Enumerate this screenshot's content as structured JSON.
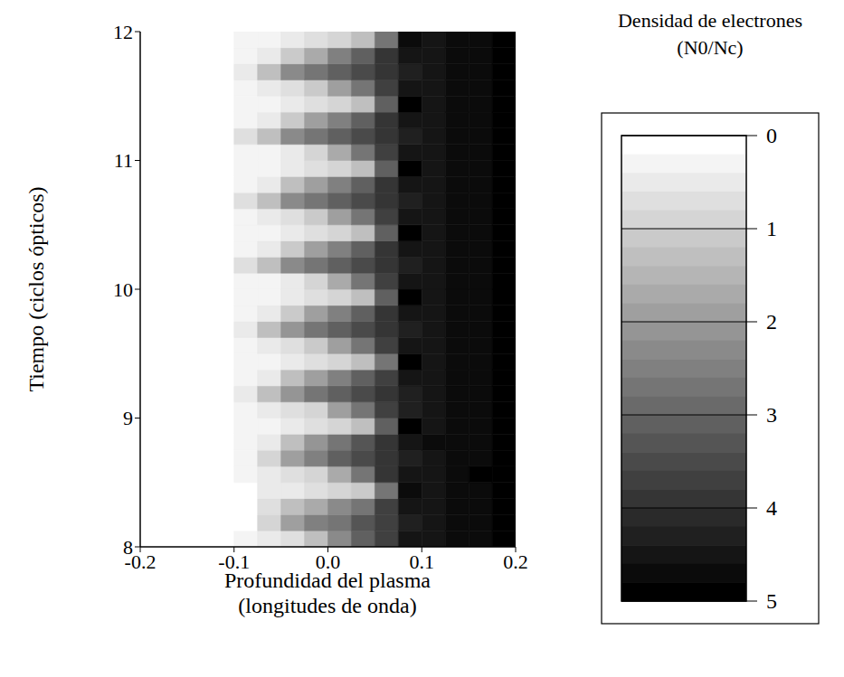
{
  "chart_data": {
    "type": "heatmap",
    "xlabel": "Profundidad del plasma (longitudes de onda)",
    "ylabel": "Tiempo (ciclos ópticos)",
    "xlim": [
      -0.2,
      0.2
    ],
    "xticks": [
      -0.2,
      -0.1,
      {
        "value": 0,
        "label": "0.0"
      },
      0.1,
      0.2
    ],
    "ylim": [
      8,
      12
    ],
    "yticks": [
      8,
      9,
      10,
      11,
      12
    ],
    "x_edges": [
      -0.2,
      -0.175,
      -0.15,
      -0.125,
      -0.1,
      -0.075,
      -0.05,
      -0.025,
      0,
      0.025,
      0.05,
      0.075,
      0.1,
      0.125,
      0.15,
      0.175,
      0.2
    ],
    "y_edges": [
      8,
      8.125,
      8.25,
      8.375,
      8.5,
      8.625,
      8.75,
      8.875,
      9,
      9.125,
      9.25,
      9.375,
      9.5,
      9.625,
      9.75,
      9.875,
      10,
      10.125,
      10.25,
      10.375,
      10.5,
      10.625,
      10.75,
      10.875,
      11,
      11.125,
      11.25,
      11.375,
      11.5,
      11.625,
      11.75,
      11.875,
      12
    ],
    "cells": [
      [
        0,
        0,
        0,
        0,
        0.2,
        0.4,
        0.6,
        1.2,
        2.2,
        3.0,
        3.6,
        4.4,
        4.4,
        4.6,
        4.7,
        4.8
      ],
      [
        0,
        0,
        0,
        0,
        0,
        0.8,
        1.8,
        2.4,
        2.8,
        3.2,
        3.6,
        4.2,
        4.4,
        4.6,
        4.6,
        4.8
      ],
      [
        0,
        0,
        0,
        0,
        0,
        0.6,
        1.2,
        1.6,
        2.2,
        2.8,
        3.6,
        4.4,
        4.4,
        4.6,
        4.7,
        4.8
      ],
      [
        0,
        0,
        0,
        0,
        0,
        0.4,
        0.5,
        0.6,
        0.8,
        1.0,
        2.6,
        4.6,
        4.4,
        4.6,
        4.7,
        4.9
      ],
      [
        0,
        0,
        0,
        0,
        0.2,
        0.4,
        0.6,
        0.8,
        1.6,
        2.8,
        3.8,
        4.4,
        4.5,
        4.6,
        4.8,
        4.8
      ],
      [
        0,
        0,
        0,
        0,
        0.3,
        0.9,
        1.8,
        2.4,
        3.0,
        3.4,
        3.8,
        4.2,
        4.5,
        4.6,
        4.7,
        4.8
      ],
      [
        0,
        0,
        0,
        0,
        0.2,
        0.4,
        1.4,
        2.0,
        2.6,
        3.2,
        3.8,
        4.4,
        4.6,
        4.6,
        4.7,
        4.8
      ],
      [
        0,
        0,
        0,
        0,
        0.2,
        0.3,
        0.5,
        0.6,
        0.8,
        1.2,
        3.0,
        4.8,
        4.5,
        4.6,
        4.7,
        4.8
      ],
      [
        0,
        0,
        0,
        0,
        0.3,
        0.4,
        0.6,
        0.9,
        1.8,
        2.8,
        3.6,
        4.3,
        4.5,
        4.6,
        4.7,
        4.8
      ],
      [
        0,
        0,
        0,
        0,
        0.5,
        1.4,
        2.0,
        2.6,
        3.0,
        3.4,
        3.8,
        4.2,
        4.4,
        4.6,
        4.7,
        4.8
      ],
      [
        0,
        0,
        0,
        0,
        0.2,
        0.5,
        1.2,
        1.8,
        2.4,
        3.0,
        3.6,
        4.4,
        4.5,
        4.6,
        4.7,
        4.8
      ],
      [
        0,
        0,
        0,
        0,
        0.2,
        0.3,
        0.5,
        0.6,
        0.8,
        1.2,
        2.8,
        4.8,
        4.4,
        4.6,
        4.7,
        4.8
      ],
      [
        0,
        0,
        0,
        0,
        0.2,
        0.4,
        0.6,
        1.0,
        1.8,
        2.8,
        3.6,
        4.4,
        4.5,
        4.6,
        4.7,
        4.8
      ],
      [
        0,
        0,
        0,
        0,
        0.4,
        1.2,
        2.0,
        2.6,
        3.0,
        3.4,
        3.8,
        4.2,
        4.4,
        4.6,
        4.7,
        4.8
      ],
      [
        0,
        0,
        0,
        0,
        0.2,
        0.4,
        1.0,
        1.8,
        2.4,
        3.0,
        3.8,
        4.4,
        4.5,
        4.6,
        4.7,
        4.8
      ],
      [
        0,
        0,
        0,
        0,
        0.2,
        0.3,
        0.4,
        0.6,
        0.8,
        1.2,
        3.0,
        4.8,
        4.5,
        4.6,
        4.7,
        4.8
      ],
      [
        0,
        0,
        0,
        0.1,
        0.2,
        0.3,
        0.5,
        0.8,
        1.6,
        2.6,
        3.6,
        4.4,
        4.5,
        4.6,
        4.7,
        4.8
      ],
      [
        0,
        0,
        0,
        0,
        0.6,
        1.4,
        2.2,
        2.6,
        3.0,
        3.4,
        3.8,
        4.2,
        4.4,
        4.6,
        4.7,
        4.8
      ],
      [
        0,
        0,
        0,
        0,
        0.2,
        0.4,
        1.0,
        1.8,
        2.4,
        3.0,
        3.8,
        4.4,
        4.5,
        4.6,
        4.7,
        4.8
      ],
      [
        0,
        0,
        0,
        0,
        0.2,
        0.3,
        0.4,
        0.6,
        0.8,
        1.2,
        3.0,
        4.8,
        4.5,
        4.6,
        4.7,
        4.8
      ],
      [
        0,
        0,
        0,
        0,
        0.2,
        0.4,
        0.6,
        1.0,
        1.8,
        2.8,
        3.6,
        4.4,
        4.5,
        4.6,
        4.7,
        4.8
      ],
      [
        0,
        0,
        0,
        0,
        0.6,
        1.4,
        2.2,
        2.6,
        3.0,
        3.4,
        3.8,
        4.2,
        4.4,
        4.6,
        4.7,
        4.8
      ],
      [
        0,
        0,
        0,
        0,
        0.2,
        0.5,
        1.2,
        1.8,
        2.4,
        3.0,
        3.8,
        4.4,
        4.5,
        4.6,
        4.7,
        4.8
      ],
      [
        0,
        0,
        0,
        0.1,
        0.2,
        0.3,
        0.4,
        0.6,
        0.8,
        1.2,
        3.0,
        4.8,
        4.5,
        4.6,
        4.7,
        4.8
      ],
      [
        0,
        0,
        0,
        0.1,
        0.2,
        0.3,
        0.5,
        0.8,
        1.6,
        2.6,
        3.6,
        4.4,
        4.5,
        4.6,
        4.7,
        4.8
      ],
      [
        0,
        0,
        0,
        0,
        0.6,
        1.4,
        2.2,
        2.6,
        3.0,
        3.4,
        3.8,
        4.2,
        4.4,
        4.6,
        4.7,
        4.8
      ],
      [
        0,
        0,
        0,
        0,
        0.2,
        0.4,
        1.0,
        1.8,
        2.4,
        3.0,
        3.8,
        4.4,
        4.5,
        4.6,
        4.7,
        4.8
      ],
      [
        0,
        0,
        0,
        0,
        0.2,
        0.3,
        0.4,
        0.6,
        0.8,
        1.2,
        3.0,
        4.8,
        4.5,
        4.6,
        4.7,
        4.8
      ],
      [
        0,
        0,
        0,
        0,
        0.2,
        0.4,
        0.6,
        1.0,
        1.8,
        2.8,
        3.6,
        4.4,
        4.5,
        4.6,
        4.7,
        4.8
      ],
      [
        0,
        0,
        0,
        0,
        0.5,
        1.4,
        2.2,
        2.6,
        3.0,
        3.4,
        3.8,
        4.2,
        4.4,
        4.6,
        4.7,
        4.8
      ],
      [
        0,
        0,
        0,
        0,
        0.2,
        0.4,
        1.0,
        1.6,
        2.4,
        3.0,
        3.8,
        4.4,
        4.5,
        4.6,
        4.7,
        4.8
      ],
      [
        0,
        0,
        0,
        0,
        0.2,
        0.3,
        0.4,
        0.6,
        0.8,
        1.2,
        2.8,
        4.6,
        4.5,
        4.6,
        4.7,
        4.8
      ]
    ],
    "colorbar": {
      "title": "Densidad de electrones",
      "units": "(N0/Nc)",
      "range": [
        0,
        5
      ],
      "ticks": [
        0,
        1,
        2,
        3,
        4,
        5
      ]
    }
  }
}
